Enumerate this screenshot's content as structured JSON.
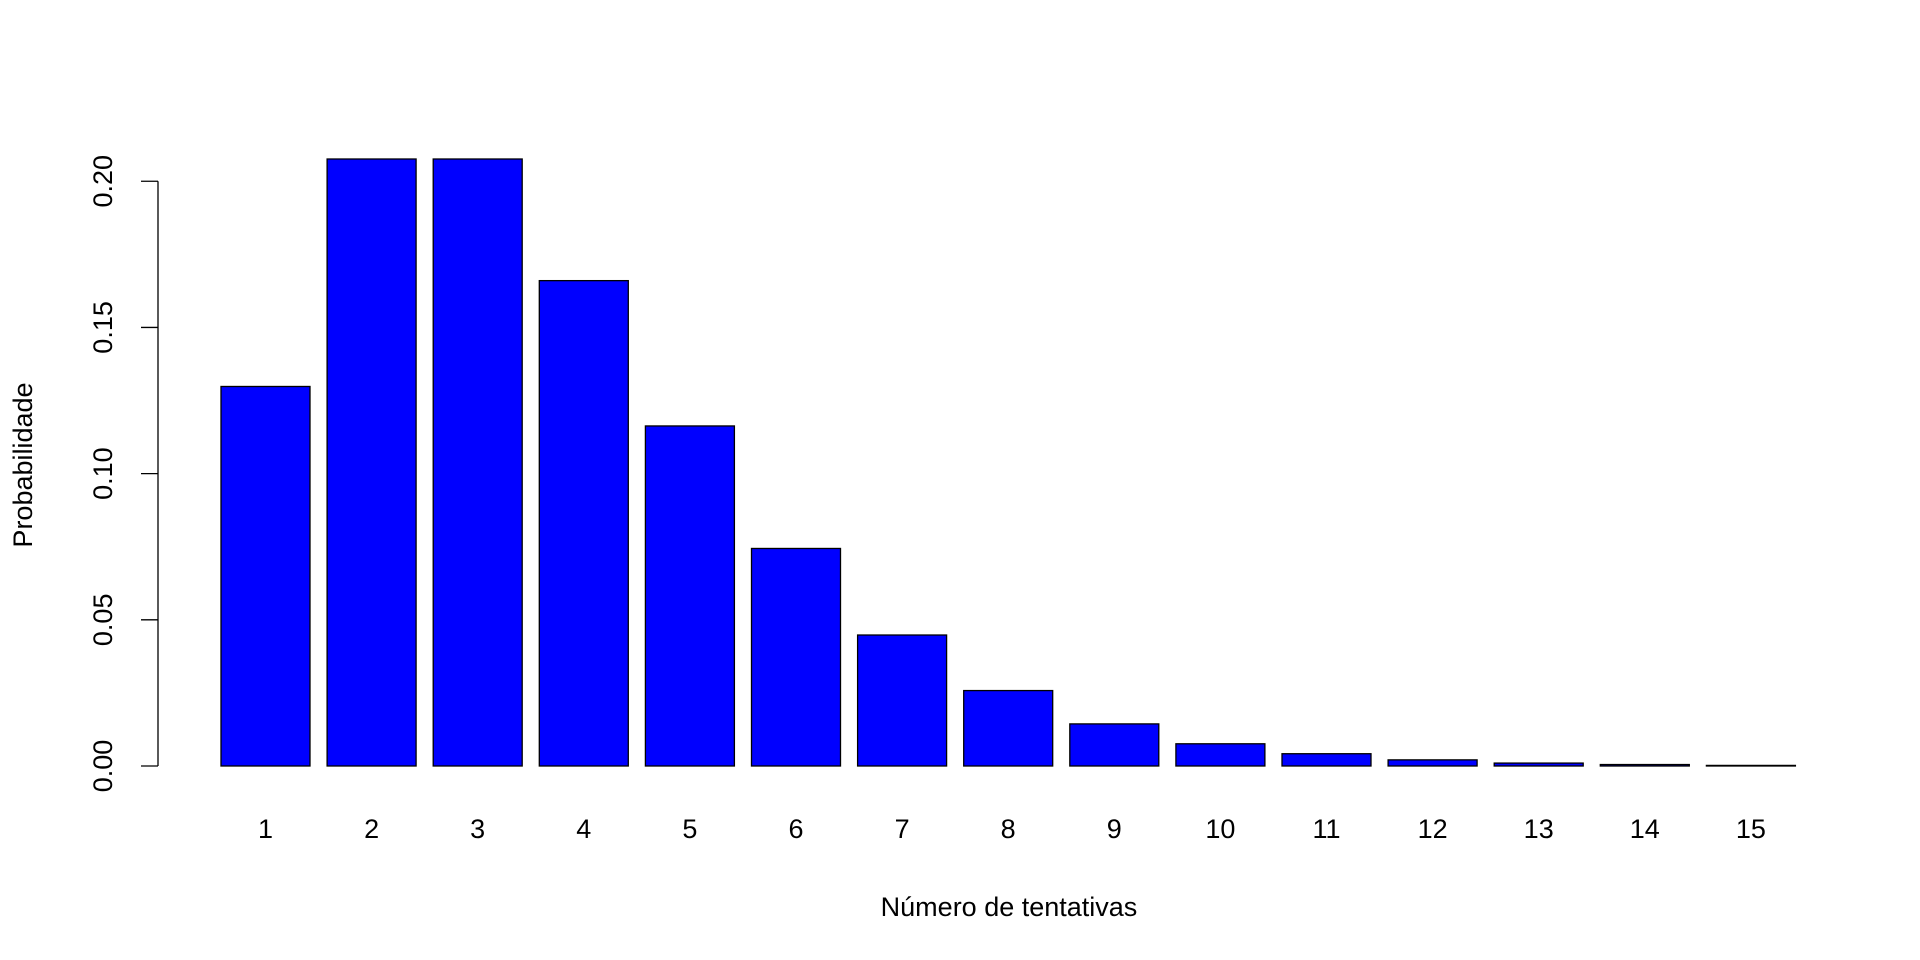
{
  "chart_data": {
    "type": "bar",
    "x_label": "Número de tentativas",
    "y_label": "Probabilidade",
    "categories": [
      "1",
      "2",
      "3",
      "4",
      "5",
      "6",
      "7",
      "8",
      "9",
      "10",
      "11",
      "12",
      "13",
      "14",
      "15"
    ],
    "values": [
      0.1298,
      0.2076,
      0.2076,
      0.166,
      0.1163,
      0.0744,
      0.0448,
      0.0258,
      0.0144,
      0.0076,
      0.0042,
      0.0021,
      0.001,
      0.0005,
      0.0002
    ],
    "color": "#0000ff",
    "ylim": [
      0,
      0.2076
    ],
    "yticks": [
      {
        "value": 0,
        "label": "0.00"
      },
      {
        "value": 0.05,
        "label": "0.05"
      },
      {
        "value": 0.1,
        "label": "0.10"
      },
      0.15,
      {
        "value": 0.2,
        "label": "0.20"
      }
    ],
    "grid": false
  }
}
